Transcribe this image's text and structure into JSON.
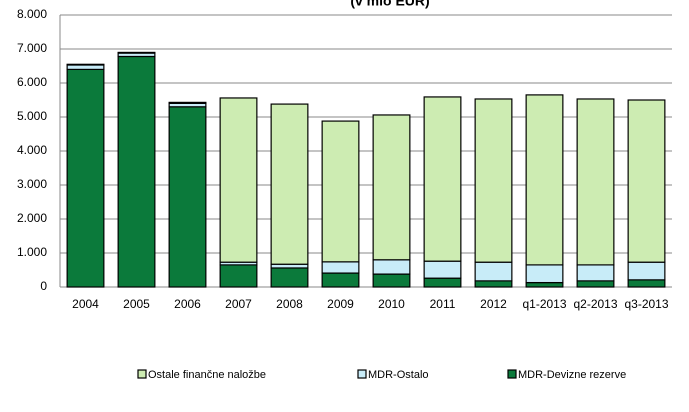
{
  "chart_data": {
    "type": "stacked_bar",
    "title": "(v mio EUR)",
    "categories": [
      "2004",
      "2005",
      "2006",
      "2007",
      "2008",
      "2009",
      "2010",
      "2011",
      "2012",
      "q1-2013",
      "q2-2013",
      "q3-2013"
    ],
    "series": [
      {
        "name": "MDR-Devizne rezerve",
        "color": "#0b7a3b",
        "values": [
          6400,
          6780,
          5300,
          650,
          560,
          410,
          380,
          260,
          180,
          130,
          180,
          210
        ]
      },
      {
        "name": "MDR-Ostalo",
        "color": "#c8ecf8",
        "values": [
          130,
          100,
          100,
          80,
          110,
          330,
          420,
          500,
          550,
          520,
          470,
          520
        ]
      },
      {
        "name": "Ostale finančne naložbe",
        "color": "#cdecb2",
        "values": [
          20,
          20,
          30,
          4830,
          4710,
          4140,
          4260,
          4830,
          4800,
          5000,
          4880,
          4770
        ]
      }
    ],
    "legend_order": [
      "Ostale finančne naložbe",
      "MDR-Ostalo",
      "MDR-Devizne rezerve"
    ],
    "ylim": [
      0,
      8000
    ],
    "yticks": [
      0,
      {
        "value": 1000,
        "label": "1.000"
      },
      {
        "value": 2000,
        "label": "2.000"
      },
      {
        "value": 3000,
        "label": "3.000"
      },
      {
        "value": 4000,
        "label": "4.000"
      },
      {
        "value": 5000,
        "label": "5.000"
      },
      {
        "value": 6000,
        "label": "6.000"
      },
      {
        "value": 7000,
        "label": "7.000"
      },
      {
        "value": 8000,
        "label": "8.000"
      }
    ],
    "grid": true,
    "legend": "bottom"
  }
}
